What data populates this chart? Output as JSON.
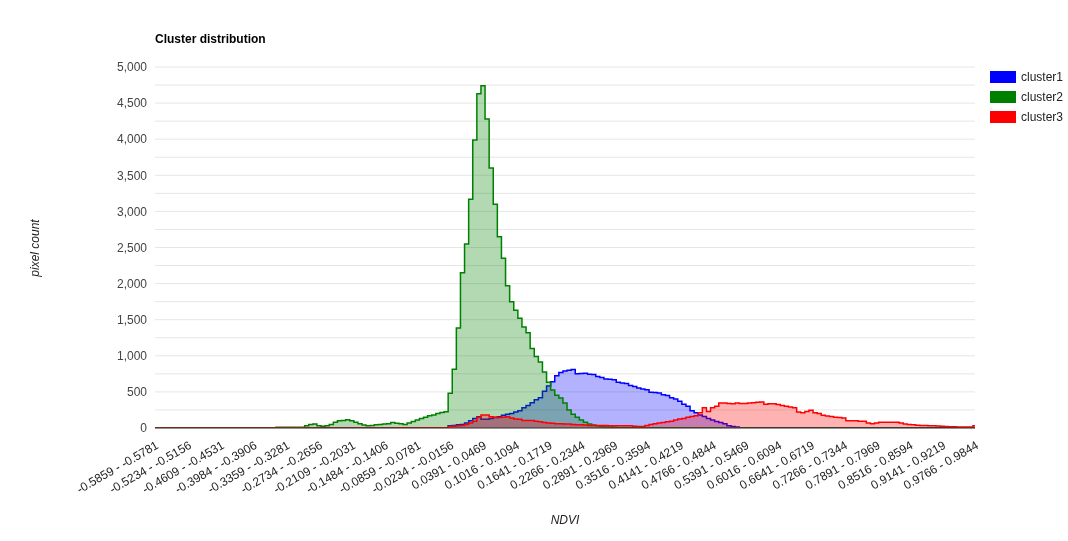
{
  "chart_data": {
    "type": "area",
    "title": "Cluster distribution",
    "xlabel": "NDVI",
    "ylabel": "pixel count",
    "categories": [
      "-0.5859 - -0.5781",
      null,
      null,
      null,
      null,
      null,
      null,
      null,
      "-0.5234 - -0.5156",
      null,
      null,
      null,
      null,
      null,
      null,
      null,
      "-0.4609 - -0.4531",
      null,
      null,
      null,
      null,
      null,
      null,
      null,
      "-0.3984 - -0.3906",
      null,
      null,
      null,
      null,
      null,
      null,
      null,
      "-0.3359 - -0.3281",
      null,
      null,
      null,
      null,
      null,
      null,
      null,
      "-0.2734 - -0.2656",
      null,
      null,
      null,
      null,
      null,
      null,
      null,
      "-0.2109 - -0.2031",
      null,
      null,
      null,
      null,
      null,
      null,
      null,
      "-0.1484 - -0.1406",
      null,
      null,
      null,
      null,
      null,
      null,
      null,
      "-0.0859 - -0.0781",
      null,
      null,
      null,
      null,
      null,
      null,
      null,
      "-0.0234 - -0.0156",
      null,
      null,
      null,
      null,
      null,
      null,
      null,
      "0.0391 - 0.0469",
      null,
      null,
      null,
      null,
      null,
      null,
      null,
      "0.1016 - 0.1094",
      null,
      null,
      null,
      null,
      null,
      null,
      null,
      "0.1641 - 0.1719",
      null,
      null,
      null,
      null,
      null,
      null,
      null,
      "0.2266 - 0.2344",
      null,
      null,
      null,
      null,
      null,
      null,
      null,
      "0.2891 - 0.2969",
      null,
      null,
      null,
      null,
      null,
      null,
      null,
      "0.3516 - 0.3594",
      null,
      null,
      null,
      null,
      null,
      null,
      null,
      "0.4141 - 0.4219",
      null,
      null,
      null,
      null,
      null,
      null,
      null,
      "0.4766 - 0.4844",
      null,
      null,
      null,
      null,
      null,
      null,
      null,
      "0.5391 - 0.5469",
      null,
      null,
      null,
      null,
      null,
      null,
      null,
      "0.6016 - 0.6094",
      null,
      null,
      null,
      null,
      null,
      null,
      null,
      "0.6641 - 0.6719",
      null,
      null,
      null,
      null,
      null,
      null,
      null,
      "0.7266 - 0.7344",
      null,
      null,
      null,
      null,
      null,
      null,
      null,
      "0.7891 - 0.7969",
      null,
      null,
      null,
      null,
      null,
      null,
      null,
      "0.8516 - 0.8594",
      null,
      null,
      null,
      null,
      null,
      null,
      null,
      "0.9141 - 0.9219",
      null,
      null,
      null,
      null,
      null,
      null,
      null,
      "0.9766 - 0.9844"
    ],
    "series": [
      {
        "name": "cluster1",
        "color": "#0000ff",
        "values": [
          0,
          0,
          0,
          0,
          0,
          0,
          0,
          0,
          0,
          0,
          0,
          0,
          0,
          0,
          0,
          0,
          0,
          0,
          0,
          0,
          0,
          0,
          0,
          0,
          0,
          0,
          0,
          0,
          0,
          0,
          0,
          0,
          0,
          0,
          0,
          0,
          0,
          0,
          0,
          0,
          0,
          0,
          0,
          0,
          0,
          0,
          0,
          0,
          0,
          0,
          0,
          0,
          0,
          0,
          0,
          0,
          0,
          0,
          0,
          0,
          5,
          5,
          5,
          5,
          5,
          5,
          5,
          5,
          5,
          5,
          5,
          5,
          30,
          35,
          45,
          50,
          70,
          100,
          130,
          155,
          120,
          120,
          130,
          145,
          155,
          175,
          190,
          200,
          220,
          240,
          280,
          310,
          350,
          390,
          420,
          510,
          580,
          640,
          725,
          770,
          790,
          800,
          810,
          750,
          755,
          760,
          745,
          740,
          715,
          700,
          680,
          675,
          670,
          635,
          625,
          615,
          590,
          575,
          555,
          540,
          530,
          495,
          490,
          485,
          460,
          450,
          420,
          400,
          370,
          330,
          300,
          240,
          210,
          180,
          160,
          130,
          110,
          90,
          75,
          60,
          30,
          20,
          15,
          5,
          5,
          5,
          5,
          5,
          5,
          5,
          5,
          5,
          5,
          5,
          5,
          5,
          5,
          5,
          5,
          5,
          5,
          5,
          5,
          5,
          5,
          5,
          5,
          5,
          5,
          5,
          5,
          5,
          5,
          5,
          5,
          5,
          5,
          5,
          5,
          5,
          5,
          5,
          5,
          5,
          5,
          5,
          5,
          5,
          5,
          5,
          5,
          5,
          5,
          5,
          5,
          5,
          5,
          5,
          5,
          5,
          5
        ]
      },
      {
        "name": "cluster2",
        "color": "#008000",
        "values": [
          5,
          5,
          5,
          5,
          5,
          5,
          5,
          5,
          5,
          5,
          5,
          5,
          5,
          5,
          5,
          5,
          5,
          5,
          5,
          5,
          5,
          5,
          5,
          5,
          5,
          5,
          5,
          5,
          5,
          5,
          10,
          10,
          10,
          10,
          10,
          10,
          10,
          30,
          50,
          55,
          30,
          25,
          30,
          50,
          80,
          100,
          105,
          115,
          100,
          80,
          60,
          40,
          30,
          35,
          45,
          50,
          55,
          60,
          75,
          65,
          60,
          50,
          70,
          90,
          110,
          130,
          150,
          170,
          180,
          200,
          215,
          225,
          480,
          815,
          1385,
          2150,
          2550,
          3170,
          3990,
          4630,
          4740,
          4280,
          3600,
          3100,
          2650,
          2350,
          1970,
          1750,
          1630,
          1520,
          1400,
          1320,
          1100,
          990,
          915,
          775,
          635,
          525,
          455,
          415,
          345,
          250,
          190,
          150,
          110,
          80,
          55,
          40,
          30,
          20,
          15,
          15,
          10,
          5,
          5,
          5,
          5,
          5,
          5,
          5,
          5,
          5,
          5,
          5,
          5,
          5,
          5,
          5,
          5,
          5,
          5,
          5,
          5,
          5,
          5,
          5,
          5,
          5,
          5,
          0,
          0,
          0,
          0,
          0,
          0,
          0,
          0,
          0,
          0,
          0,
          0,
          0,
          0,
          0,
          0,
          0,
          0,
          0,
          0,
          0,
          0,
          0,
          0,
          0,
          0,
          0,
          0,
          0,
          0,
          0,
          0,
          0,
          0,
          0,
          0,
          0,
          0,
          0,
          0,
          0,
          0,
          0,
          0,
          0,
          0,
          0,
          0,
          0,
          0,
          0,
          0,
          0,
          0,
          0,
          0,
          0,
          0,
          0,
          0,
          0,
          0
        ]
      },
      {
        "name": "cluster3",
        "color": "#ff0000",
        "values": [
          0,
          0,
          0,
          0,
          0,
          0,
          0,
          0,
          0,
          0,
          0,
          0,
          0,
          0,
          0,
          0,
          0,
          0,
          0,
          0,
          0,
          0,
          0,
          0,
          0,
          0,
          0,
          0,
          0,
          0,
          0,
          0,
          0,
          0,
          0,
          0,
          0,
          0,
          0,
          0,
          0,
          0,
          0,
          0,
          0,
          0,
          0,
          0,
          0,
          0,
          0,
          0,
          0,
          0,
          0,
          0,
          0,
          0,
          0,
          0,
          5,
          5,
          5,
          5,
          5,
          5,
          5,
          5,
          5,
          5,
          5,
          5,
          20,
          25,
          30,
          35,
          50,
          70,
          95,
          150,
          180,
          180,
          155,
          150,
          145,
          150,
          155,
          140,
          125,
          120,
          105,
          105,
          105,
          95,
          85,
          75,
          70,
          65,
          60,
          60,
          55,
          55,
          50,
          45,
          45,
          40,
          35,
          35,
          35,
          35,
          35,
          30,
          30,
          30,
          30,
          30,
          30,
          25,
          20,
          20,
          35,
          50,
          60,
          70,
          75,
          85,
          95,
          110,
          125,
          130,
          150,
          160,
          170,
          210,
          280,
          230,
          280,
          300,
          345,
          345,
          340,
          335,
          345,
          340,
          340,
          345,
          350,
          355,
          360,
          330,
          335,
          335,
          325,
          310,
          300,
          290,
          280,
          220,
          210,
          230,
          245,
          210,
          200,
          175,
          165,
          160,
          150,
          145,
          140,
          100,
          100,
          100,
          95,
          95,
          70,
          60,
          70,
          80,
          80,
          80,
          80,
          80,
          70,
          55,
          50,
          45,
          37,
          35,
          33,
          32,
          30,
          28,
          23,
          20,
          18,
          16,
          14,
          14,
          14,
          14,
          30
        ]
      }
    ],
    "ylim": [
      0,
      5000
    ],
    "yticks": [
      0,
      {
        "value": 250,
        "label": null
      },
      500,
      {
        "value": 750,
        "label": null
      },
      {
        "value": 1000,
        "label": "1,000"
      },
      {
        "value": 1250,
        "label": null
      },
      {
        "value": 1500,
        "label": "1,500"
      },
      {
        "value": 1750,
        "label": null
      },
      {
        "value": 2000,
        "label": "2,000"
      },
      {
        "value": 2250,
        "label": null
      },
      {
        "value": 2500,
        "label": "2,500"
      },
      {
        "value": 2750,
        "label": null
      },
      {
        "value": 3000,
        "label": "3,000"
      },
      {
        "value": 3250,
        "label": null
      },
      {
        "value": 3500,
        "label": "3,500"
      },
      {
        "value": 3750,
        "label": null
      },
      {
        "value": 4000,
        "label": "4,000"
      },
      {
        "value": 4250,
        "label": null
      },
      {
        "value": 4500,
        "label": "4,500"
      },
      {
        "value": 4750,
        "label": null
      },
      {
        "value": 5000,
        "label": "5,000"
      }
    ],
    "grid": "y",
    "legend": "top right"
  }
}
